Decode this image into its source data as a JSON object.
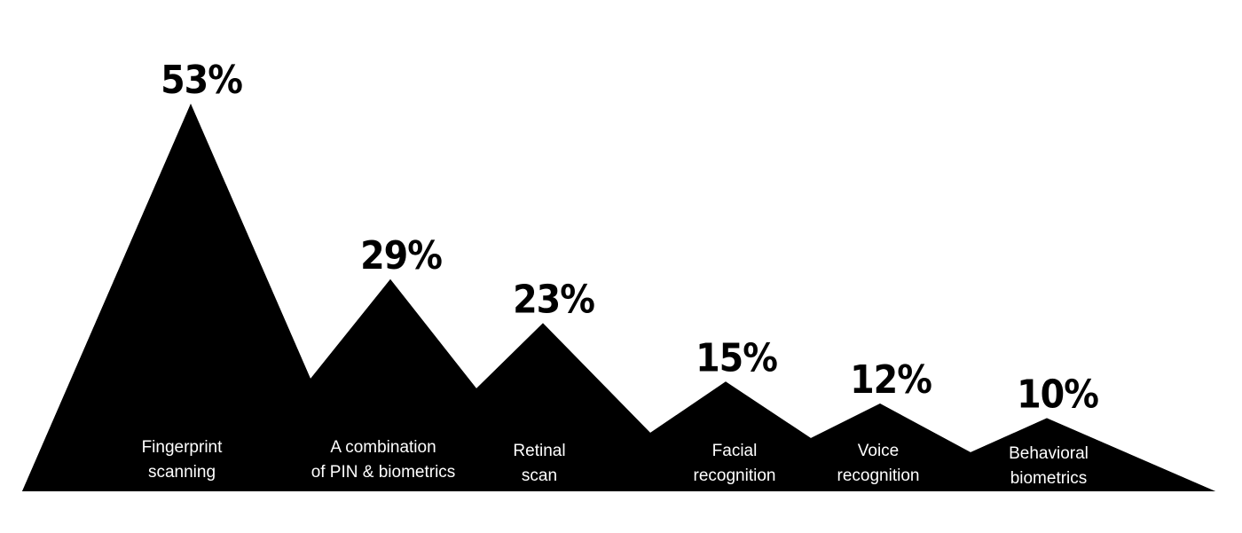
{
  "chart_data": {
    "type": "area",
    "categories": [
      "Fingerprint scanning",
      "A combination of PIN & biometrics",
      "Retinal scan",
      "Facial recognition",
      "Voice recognition",
      "Behavioral biometrics"
    ],
    "category_lines": [
      [
        "Fingerprint",
        "scanning"
      ],
      [
        "A combination",
        "of PIN & biometrics"
      ],
      [
        "Retinal",
        "scan"
      ],
      [
        "Facial",
        "recognition"
      ],
      [
        "Voice",
        "recognition"
      ],
      [
        "Behavioral",
        "biometrics"
      ]
    ],
    "values": [
      53,
      29,
      23,
      15,
      12,
      10
    ],
    "value_labels": [
      "53%",
      "29%",
      "23%",
      "15%",
      "12%",
      "10%"
    ],
    "unit": "%",
    "fill_color": "#000000",
    "label_color": "#ffffff",
    "grid": false,
    "legend": "none"
  }
}
